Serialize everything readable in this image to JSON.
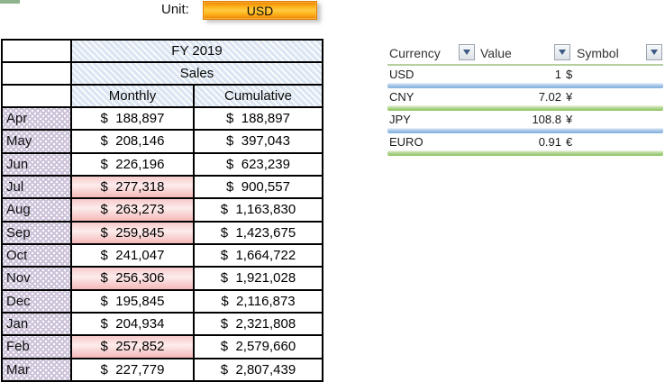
{
  "unit_bar": {
    "label": "Unit:",
    "selected": "USD"
  },
  "main_table": {
    "title": "FY 2019",
    "subtitle": "Sales",
    "columns": [
      "Monthly",
      "Cumulative"
    ],
    "rows": [
      {
        "month": "Apr",
        "monthly": "$  188,897",
        "cumulative": "$  188,897",
        "highlight": false
      },
      {
        "month": "May",
        "monthly": "$  208,146",
        "cumulative": "$  397,043",
        "highlight": false
      },
      {
        "month": "Jun",
        "monthly": "$  226,196",
        "cumulative": "$  623,239",
        "highlight": false
      },
      {
        "month": "Jul",
        "monthly": "$  277,318",
        "cumulative": "$  900,557",
        "highlight": true
      },
      {
        "month": "Aug",
        "monthly": "$  263,273",
        "cumulative": "$  1,163,830",
        "highlight": true
      },
      {
        "month": "Sep",
        "monthly": "$  259,845",
        "cumulative": "$  1,423,675",
        "highlight": true
      },
      {
        "month": "Oct",
        "monthly": "$  241,047",
        "cumulative": "$  1,664,722",
        "highlight": false
      },
      {
        "month": "Nov",
        "monthly": "$  256,306",
        "cumulative": "$  1,921,028",
        "highlight": true
      },
      {
        "month": "Dec",
        "monthly": "$  195,845",
        "cumulative": "$  2,116,873",
        "highlight": false
      },
      {
        "month": "Jan",
        "monthly": "$  204,934",
        "cumulative": "$  2,321,808",
        "highlight": false
      },
      {
        "month": "Feb",
        "monthly": "$  257,852",
        "cumulative": "$  2,579,660",
        "highlight": true
      },
      {
        "month": "Mar",
        "monthly": "$  227,779",
        "cumulative": "$  2,807,439",
        "highlight": false
      }
    ]
  },
  "currency_table": {
    "headers": [
      "Currency",
      "Value",
      "Symbol"
    ],
    "filter_icon": "filter-dropdown-icon",
    "rows": [
      {
        "currency": "USD",
        "value": "1",
        "symbol": "$",
        "band": "blue"
      },
      {
        "currency": "CNY",
        "value": "7.02",
        "symbol": "¥",
        "band": "green"
      },
      {
        "currency": "JPY",
        "value": "108.8",
        "symbol": "¥",
        "band": "blue"
      },
      {
        "currency": "EURO",
        "value": "0.91",
        "symbol": "€",
        "band": "green"
      }
    ]
  },
  "colors": {
    "header_stripe_blue": "#dbe6f2",
    "month_lavender": "#cdc3da",
    "highlight_pink": "#f5b8b8",
    "band_blue": "#7fafdd",
    "band_green": "#8cc360",
    "unit_orange": "#ffb71f",
    "unit_orange_dark": "#ed8205",
    "corner_green": "#8db48d"
  }
}
